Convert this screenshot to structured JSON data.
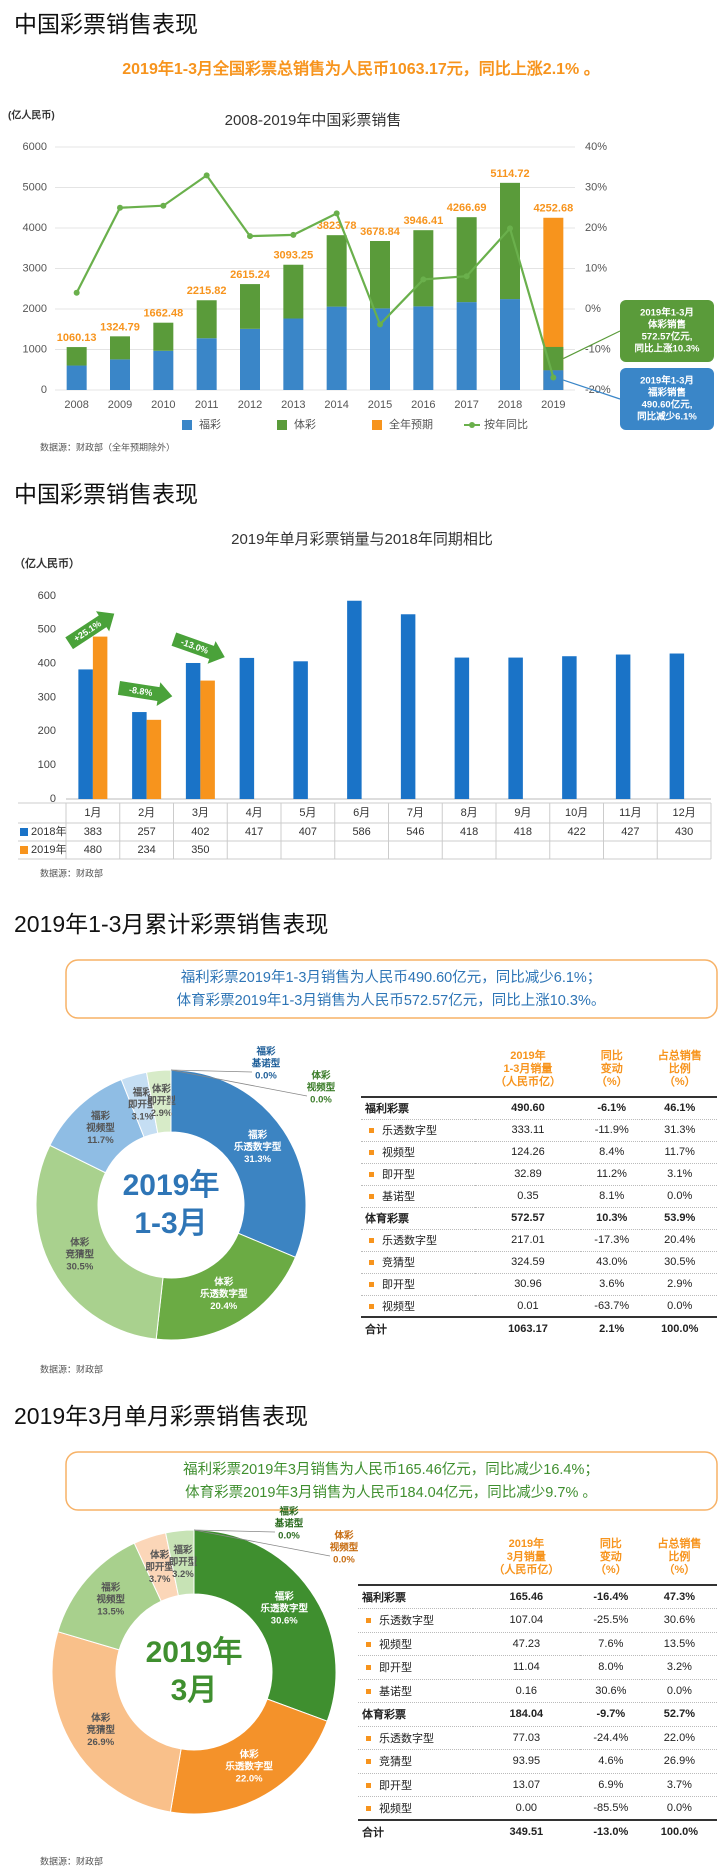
{
  "sections": [
    {
      "heading": "中国彩票销售表现",
      "highlight": "2019年1-3月全国彩票总销售为人民币1063.17元，同比上涨2.1% 。"
    },
    {
      "heading": "中国彩票销售表现"
    },
    {
      "heading": "2019年1-3月累计彩票销售表现",
      "summary": [
        "福利彩票2019年1-3月销售为人民币490.60亿元，同比减少6.1%；",
        "体育彩票2019年1-3月销售为人民币572.57亿元，同比上涨10.3%。"
      ],
      "summary_color": "#2e75b6"
    },
    {
      "heading": "2019年3月单月彩票销售表现",
      "summary": [
        "福利彩票2019年3月销售为人民币165.46亿元，同比减少16.4%；",
        "体育彩票2019年3月销售为人民币184.04亿元，同比减少9.7% 。"
      ],
      "summary_color": "#3f8f2f"
    }
  ],
  "chart_data": [
    {
      "type": "combo",
      "title": "2008-2019年中国彩票销售",
      "y_label": "(亿人民币)",
      "categories": [
        "2008",
        "2009",
        "2010",
        "2011",
        "2012",
        "2013",
        "2014",
        "2015",
        "2016",
        "2017",
        "2018",
        "2019"
      ],
      "series": [
        {
          "name": "福彩",
          "kind": "bar",
          "color": "#3a86c8",
          "values": [
            604,
            756,
            968,
            1278,
            1510,
            1765,
            2059,
            2015,
            2065,
            2170,
            2245,
            490.6
          ]
        },
        {
          "name": "体彩",
          "kind": "bar",
          "color": "#5a9b3a",
          "values": [
            456,
            569,
            694,
            938,
            1105,
            1328,
            1764,
            1664,
            1881,
            2097,
            2870,
            572.57
          ]
        },
        {
          "name": "全年预期",
          "kind": "bar",
          "overlay": true,
          "color": "#f7941d",
          "values": [
            null,
            null,
            null,
            null,
            null,
            null,
            null,
            null,
            null,
            null,
            null,
            4252.68
          ]
        },
        {
          "name": "按年同比",
          "kind": "line",
          "axis": "y2",
          "color": "#6ab04c",
          "values": [
            4,
            25,
            25.5,
            33,
            18,
            18.3,
            23.6,
            -3.8,
            7.3,
            8.1,
            19.9,
            -16.9
          ]
        }
      ],
      "totals": [
        1060.13,
        1324.79,
        1662.48,
        2215.82,
        2615.24,
        3093.25,
        3823.78,
        3678.84,
        3946.41,
        4266.69,
        5114.72,
        null
      ],
      "ylim": [
        0,
        6000
      ],
      "yticks": [
        0,
        1000,
        2000,
        3000,
        4000,
        5000,
        6000
      ],
      "y2lim": [
        -20,
        40
      ],
      "y2ticks": [
        {
          "value": -20,
          "label": "-20%"
        },
        {
          "value": -10,
          "label": "-10%"
        },
        {
          "value": 0,
          "label": "0%"
        },
        {
          "value": 10,
          "label": "10%"
        },
        {
          "value": 20,
          "label": "20%"
        },
        {
          "value": 30,
          "label": "30%"
        },
        {
          "value": 40,
          "label": "40%"
        }
      ],
      "grid": true,
      "legend": "bottom",
      "callouts": [
        {
          "lines": [
            "2019年1-3月",
            "体彩销售",
            "572.57亿元,",
            "同比上涨10.3%"
          ],
          "color": "#5a9b3a"
        },
        {
          "lines": [
            "2019年1-3月",
            "福彩销售",
            "490.60亿元,",
            "同比减少6.1%"
          ],
          "color": "#3a86c8"
        }
      ],
      "source": "数据源：财政部（全年预期除外）"
    },
    {
      "type": "bar",
      "title": "2019年单月彩票销量与2018年同期相比",
      "y_label": "（亿人民币）",
      "categories": [
        "1月",
        "2月",
        "3月",
        "4月",
        "5月",
        "6月",
        "7月",
        "8月",
        "9月",
        "10月",
        "11月",
        "12月"
      ],
      "series": [
        {
          "name": "2018年",
          "color": "#1a73c7",
          "values": [
            383,
            257,
            402,
            417,
            407,
            586,
            546,
            418,
            418,
            422,
            427,
            430
          ]
        },
        {
          "name": "2019年",
          "color": "#f7941d",
          "values": [
            480,
            234,
            350,
            null,
            null,
            null,
            null,
            null,
            null,
            null,
            null,
            null
          ]
        }
      ],
      "ylim": [
        0,
        600
      ],
      "yticks": [
        0,
        100,
        200,
        300,
        400,
        500,
        600
      ],
      "annotations": [
        "+25.1%",
        "-8.8%",
        "-13.0%"
      ],
      "annotation_color": "#4aa23a",
      "data_table": true,
      "source": "数据源：财政部"
    },
    {
      "type": "donut",
      "center_label": [
        "2019年",
        "1-3月"
      ],
      "center_color": "#2e75b6",
      "groups": [
        "福彩",
        "体彩",
        "体彩",
        "福彩",
        "福彩",
        "体彩",
        "福彩",
        "体彩"
      ],
      "categories": [
        "乐透数字型",
        "乐透数字型",
        "竞猜型",
        "视频型",
        "即开型",
        "即开型",
        "基诺型",
        "视频型"
      ],
      "values": [
        31.3,
        20.4,
        30.5,
        11.7,
        3.1,
        2.9,
        0.0,
        0.0
      ],
      "value_labels": [
        "31.3%",
        "20.4%",
        "30.5%",
        "11.7%",
        "3.1%",
        "2.9%",
        "0.0%",
        "0.0%"
      ],
      "colors": [
        "#3c84c2",
        "#6bab44",
        "#a9d18e",
        "#8fbde4",
        "#c5def3",
        "#d7ebc8",
        "#1f5f99",
        "#3c7d2a"
      ],
      "source": "数据源：财政部"
    },
    {
      "type": "donut",
      "center_label": [
        "2019年",
        "3月"
      ],
      "center_color": "#3f8f2f",
      "groups": [
        "福彩",
        "体彩",
        "体彩",
        "福彩",
        "体彩",
        "福彩",
        "福彩",
        "体彩"
      ],
      "categories": [
        "乐透数字型",
        "乐透数字型",
        "竞猜型",
        "视频型",
        "即开型",
        "即开型",
        "基诺型",
        "视频型"
      ],
      "values": [
        30.6,
        22.0,
        26.9,
        13.5,
        3.7,
        3.2,
        0.0,
        0.0
      ],
      "value_labels": [
        "30.6%",
        "22.0%",
        "26.9%",
        "13.5%",
        "3.7%",
        "3.2%",
        "0.0%",
        "0.0%"
      ],
      "colors": [
        "#3f8f2f",
        "#f4922a",
        "#f9c08a",
        "#a8d08d",
        "#fbd6b8",
        "#c7e3b5",
        "#2c6b20",
        "#c76d12"
      ],
      "source": "数据源：财政部"
    }
  ],
  "tables": [
    {
      "header": [
        [
          "2019年",
          "1-3月销量",
          "（人民币亿）"
        ],
        [
          "同比",
          "变动",
          "（%）"
        ],
        [
          "占总销售",
          "比例",
          "（%）"
        ]
      ],
      "groups": [
        {
          "row": [
            "福利彩票",
            "490.60",
            "-6.1%",
            "46.1%"
          ],
          "items": [
            [
              "乐透数字型",
              "333.11",
              "-11.9%",
              "31.3%"
            ],
            [
              "视频型",
              "124.26",
              "8.4%",
              "11.7%"
            ],
            [
              "即开型",
              "32.89",
              "11.2%",
              "3.1%"
            ],
            [
              "基诺型",
              "0.35",
              "8.1%",
              "0.0%"
            ]
          ]
        },
        {
          "row": [
            "体育彩票",
            "572.57",
            "10.3%",
            "53.9%"
          ],
          "items": [
            [
              "乐透数字型",
              "217.01",
              "-17.3%",
              "20.4%"
            ],
            [
              "竞猜型",
              "324.59",
              "43.0%",
              "30.5%"
            ],
            [
              "即开型",
              "30.96",
              "3.6%",
              "2.9%"
            ],
            [
              "视频型",
              "0.01",
              "-63.7%",
              "0.0%"
            ]
          ]
        }
      ],
      "total": [
        "合计",
        "1063.17",
        "2.1%",
        "100.0%"
      ]
    },
    {
      "header": [
        [
          "2019年",
          "3月销量",
          "（人民币亿）"
        ],
        [
          "同比",
          "变动",
          "（%）"
        ],
        [
          "占总销售",
          "比例",
          "（%）"
        ]
      ],
      "groups": [
        {
          "row": [
            "福利彩票",
            "165.46",
            "-16.4%",
            "47.3%"
          ],
          "items": [
            [
              "乐透数字型",
              "107.04",
              "-25.5%",
              "30.6%"
            ],
            [
              "视频型",
              "47.23",
              "7.6%",
              "13.5%"
            ],
            [
              "即开型",
              "11.04",
              "8.0%",
              "3.2%"
            ],
            [
              "基诺型",
              "0.16",
              "30.6%",
              "0.0%"
            ]
          ]
        },
        {
          "row": [
            "体育彩票",
            "184.04",
            "-9.7%",
            "52.7%"
          ],
          "items": [
            [
              "乐透数字型",
              "77.03",
              "-24.4%",
              "22.0%"
            ],
            [
              "竞猜型",
              "93.95",
              "4.6%",
              "26.9%"
            ],
            [
              "即开型",
              "13.07",
              "6.9%",
              "3.7%"
            ],
            [
              "视频型",
              "0.00",
              "-85.5%",
              "0.0%"
            ]
          ]
        }
      ],
      "total": [
        "合计",
        "349.51",
        "-13.0%",
        "100.0%"
      ]
    }
  ]
}
